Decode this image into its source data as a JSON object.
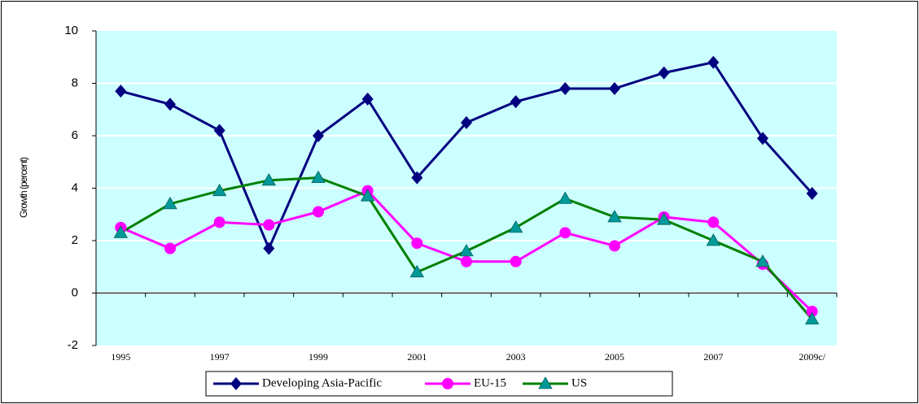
{
  "chart_data": {
    "type": "line",
    "y_label": "Growth (percent)",
    "categories": [
      "1995",
      null,
      "1997",
      null,
      "1999",
      null,
      "2001",
      null,
      "2003",
      null,
      "2005",
      null,
      "2007",
      null,
      "2009c/"
    ],
    "series": [
      {
        "name": "Developing Asia-Pacific",
        "color": "#000080",
        "marker": "diamond",
        "marker_color": "#000080",
        "values": [
          7.7,
          7.2,
          6.2,
          1.7,
          6.0,
          7.4,
          4.4,
          6.5,
          7.3,
          7.8,
          7.8,
          8.4,
          8.8,
          5.9,
          3.8
        ]
      },
      {
        "name": "EU-15",
        "color": "#ff00ff",
        "marker": "circle",
        "marker_color": "#ff00ff",
        "values": [
          2.5,
          1.7,
          2.7,
          2.6,
          3.1,
          3.9,
          1.9,
          1.2,
          1.2,
          2.3,
          1.8,
          2.9,
          2.7,
          1.1,
          -0.7
        ]
      },
      {
        "name": "US",
        "color": "#008000",
        "marker": "triangle",
        "marker_color": "#009999",
        "values": [
          2.3,
          3.4,
          3.9,
          4.3,
          4.4,
          3.7,
          0.8,
          1.6,
          2.5,
          3.6,
          2.9,
          2.8,
          2.0,
          1.2,
          -1.0
        ]
      }
    ],
    "ylim": [
      -2,
      10
    ],
    "yticks": [
      -2,
      0,
      2,
      4,
      6,
      8,
      10
    ],
    "grid": true,
    "legend": "bottom"
  }
}
